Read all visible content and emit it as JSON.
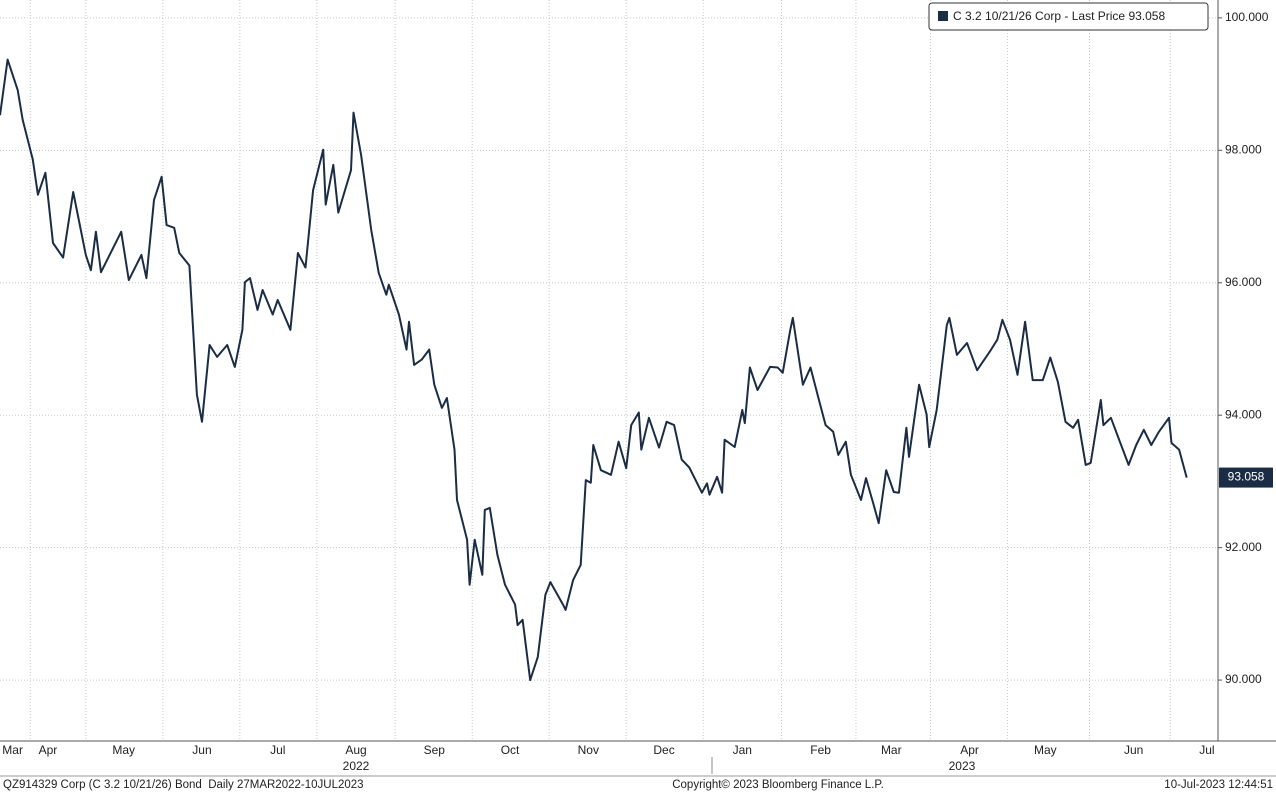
{
  "chart_data": {
    "type": "line",
    "series": [
      {
        "name": "C 3.2 10/21/26 Corp - Last Price",
        "color": "#1b2d45",
        "x": [
          0,
          3,
          7,
          9,
          13,
          15,
          18,
          21,
          25,
          29,
          34,
          36,
          38,
          40,
          48,
          51,
          56,
          58,
          61,
          64,
          66,
          69,
          71,
          75,
          78,
          80,
          83,
          86,
          90,
          93,
          96,
          97,
          99,
          102,
          104,
          108,
          110,
          115,
          118,
          121,
          124,
          128,
          129,
          132,
          134,
          139,
          140,
          143,
          147,
          150,
          153,
          154,
          158,
          161,
          162,
          164,
          167,
          170,
          172,
          175,
          177,
          180,
          181,
          185,
          186,
          188,
          191,
          192,
          194,
          197,
          200,
          204,
          205,
          207,
          210,
          213,
          216,
          218,
          223,
          224,
          227,
          230,
          232,
          234,
          235,
          238,
          242,
          245,
          248,
          250,
          253,
          254,
          257,
          261,
          264,
          267,
          270,
          273,
          278,
          280,
          281,
          284,
          286,
          287,
          291,
          294,
          295,
          297,
          300,
          305,
          308,
          310,
          313,
          314,
          318,
          321,
          324,
          327,
          330,
          332,
          335,
          337,
          341,
          343,
          346,
          348,
          351,
          354,
          356,
          359,
          360,
          364,
          367,
          368,
          371,
          375,
          376,
          379,
          383,
          387,
          392,
          395,
          397,
          400,
          403,
          406,
          409,
          413,
          416,
          419,
          422,
          425,
          427,
          430,
          432,
          436,
          437,
          440,
          445,
          447,
          450,
          453,
          456,
          459,
          463,
          464,
          467,
          470
        ],
        "values": [
          98.53,
          99.37,
          98.91,
          98.46,
          97.86,
          97.33,
          97.66,
          96.6,
          96.38,
          97.37,
          96.42,
          96.19,
          96.77,
          96.16,
          96.77,
          96.04,
          96.42,
          96.07,
          97.25,
          97.6,
          96.87,
          96.83,
          96.45,
          96.26,
          94.31,
          93.9,
          95.06,
          94.88,
          95.06,
          94.73,
          95.29,
          96.01,
          96.07,
          95.59,
          95.89,
          95.52,
          95.74,
          95.29,
          96.45,
          96.23,
          97.4,
          98.01,
          97.18,
          97.78,
          97.06,
          97.7,
          98.57,
          97.93,
          96.8,
          96.15,
          95.82,
          95.97,
          95.52,
          94.99,
          95.41,
          94.76,
          94.84,
          94.99,
          94.46,
          94.11,
          94.26,
          93.48,
          92.72,
          92.12,
          91.44,
          92.12,
          91.59,
          92.57,
          92.6,
          91.89,
          91.44,
          91.14,
          90.83,
          90.91,
          90.0,
          90.35,
          91.29,
          91.48,
          91.14,
          91.06,
          91.51,
          91.74,
          93.02,
          92.98,
          93.55,
          93.17,
          93.1,
          93.6,
          93.2,
          93.85,
          94.04,
          93.48,
          93.96,
          93.51,
          93.9,
          93.85,
          93.33,
          93.21,
          92.83,
          92.97,
          92.8,
          93.07,
          92.83,
          93.63,
          93.52,
          94.08,
          93.88,
          94.72,
          94.38,
          94.73,
          94.72,
          94.64,
          95.29,
          95.47,
          94.46,
          94.72,
          94.28,
          93.85,
          93.75,
          93.4,
          93.6,
          93.1,
          92.72,
          93.05,
          92.65,
          92.37,
          93.17,
          92.84,
          92.83,
          93.81,
          93.37,
          94.46,
          94.01,
          93.52,
          94.08,
          95.36,
          95.47,
          94.91,
          95.09,
          94.68,
          94.96,
          95.14,
          95.44,
          95.14,
          94.61,
          95.41,
          94.53,
          94.53,
          94.87,
          94.5,
          93.9,
          93.81,
          93.93,
          93.25,
          93.28,
          94.23,
          93.85,
          93.96,
          93.45,
          93.25,
          93.55,
          93.78,
          93.55,
          93.75,
          93.96,
          93.58,
          93.48,
          93.058
        ]
      }
    ],
    "last_price": 93.058,
    "xlim": [
      0,
      482.4
    ],
    "ylim": [
      89.08,
      100.27
    ],
    "yticks": [
      {
        "value": 90,
        "label": "90.000"
      },
      {
        "value": 92,
        "label": "92.000"
      },
      {
        "value": 94,
        "label": "94.000"
      },
      {
        "value": 96,
        "label": "96.000"
      },
      {
        "value": 98,
        "label": "98.000"
      },
      {
        "value": 100,
        "label": "100.000"
      }
    ],
    "xticks": [
      {
        "value": 5,
        "label": "Mar"
      },
      {
        "value": 19,
        "label": "Apr"
      },
      {
        "value": 49,
        "label": "May"
      },
      {
        "value": 80,
        "label": "Jun"
      },
      {
        "value": 110,
        "label": "Jul"
      },
      {
        "value": 141,
        "label": "Aug"
      },
      {
        "value": 172,
        "label": "Sep"
      },
      {
        "value": 202,
        "label": "Oct"
      },
      {
        "value": 233,
        "label": "Nov"
      },
      {
        "value": 263,
        "label": "Dec"
      },
      {
        "value": 294,
        "label": "Jan"
      },
      {
        "value": 325,
        "label": "Feb"
      },
      {
        "value": 353,
        "label": "Mar"
      },
      {
        "value": 384,
        "label": "Apr"
      },
      {
        "value": 414,
        "label": "May"
      },
      {
        "value": 449,
        "label": "Jun"
      },
      {
        "value": 478,
        "label": "Jul"
      }
    ],
    "year_ticks": [
      {
        "value": 141,
        "label": "2022"
      },
      {
        "value": 381,
        "label": "2023"
      }
    ],
    "grid": true
  },
  "footer": {
    "left": "QZ914329 Corp (C 3.2 10/21/26) Bond  Daily 27MAR2022-10JUL2023",
    "center": "Copyright© 2023 Bloomberg Finance L.P.",
    "right": "10-Jul-2023 12:44:51"
  }
}
